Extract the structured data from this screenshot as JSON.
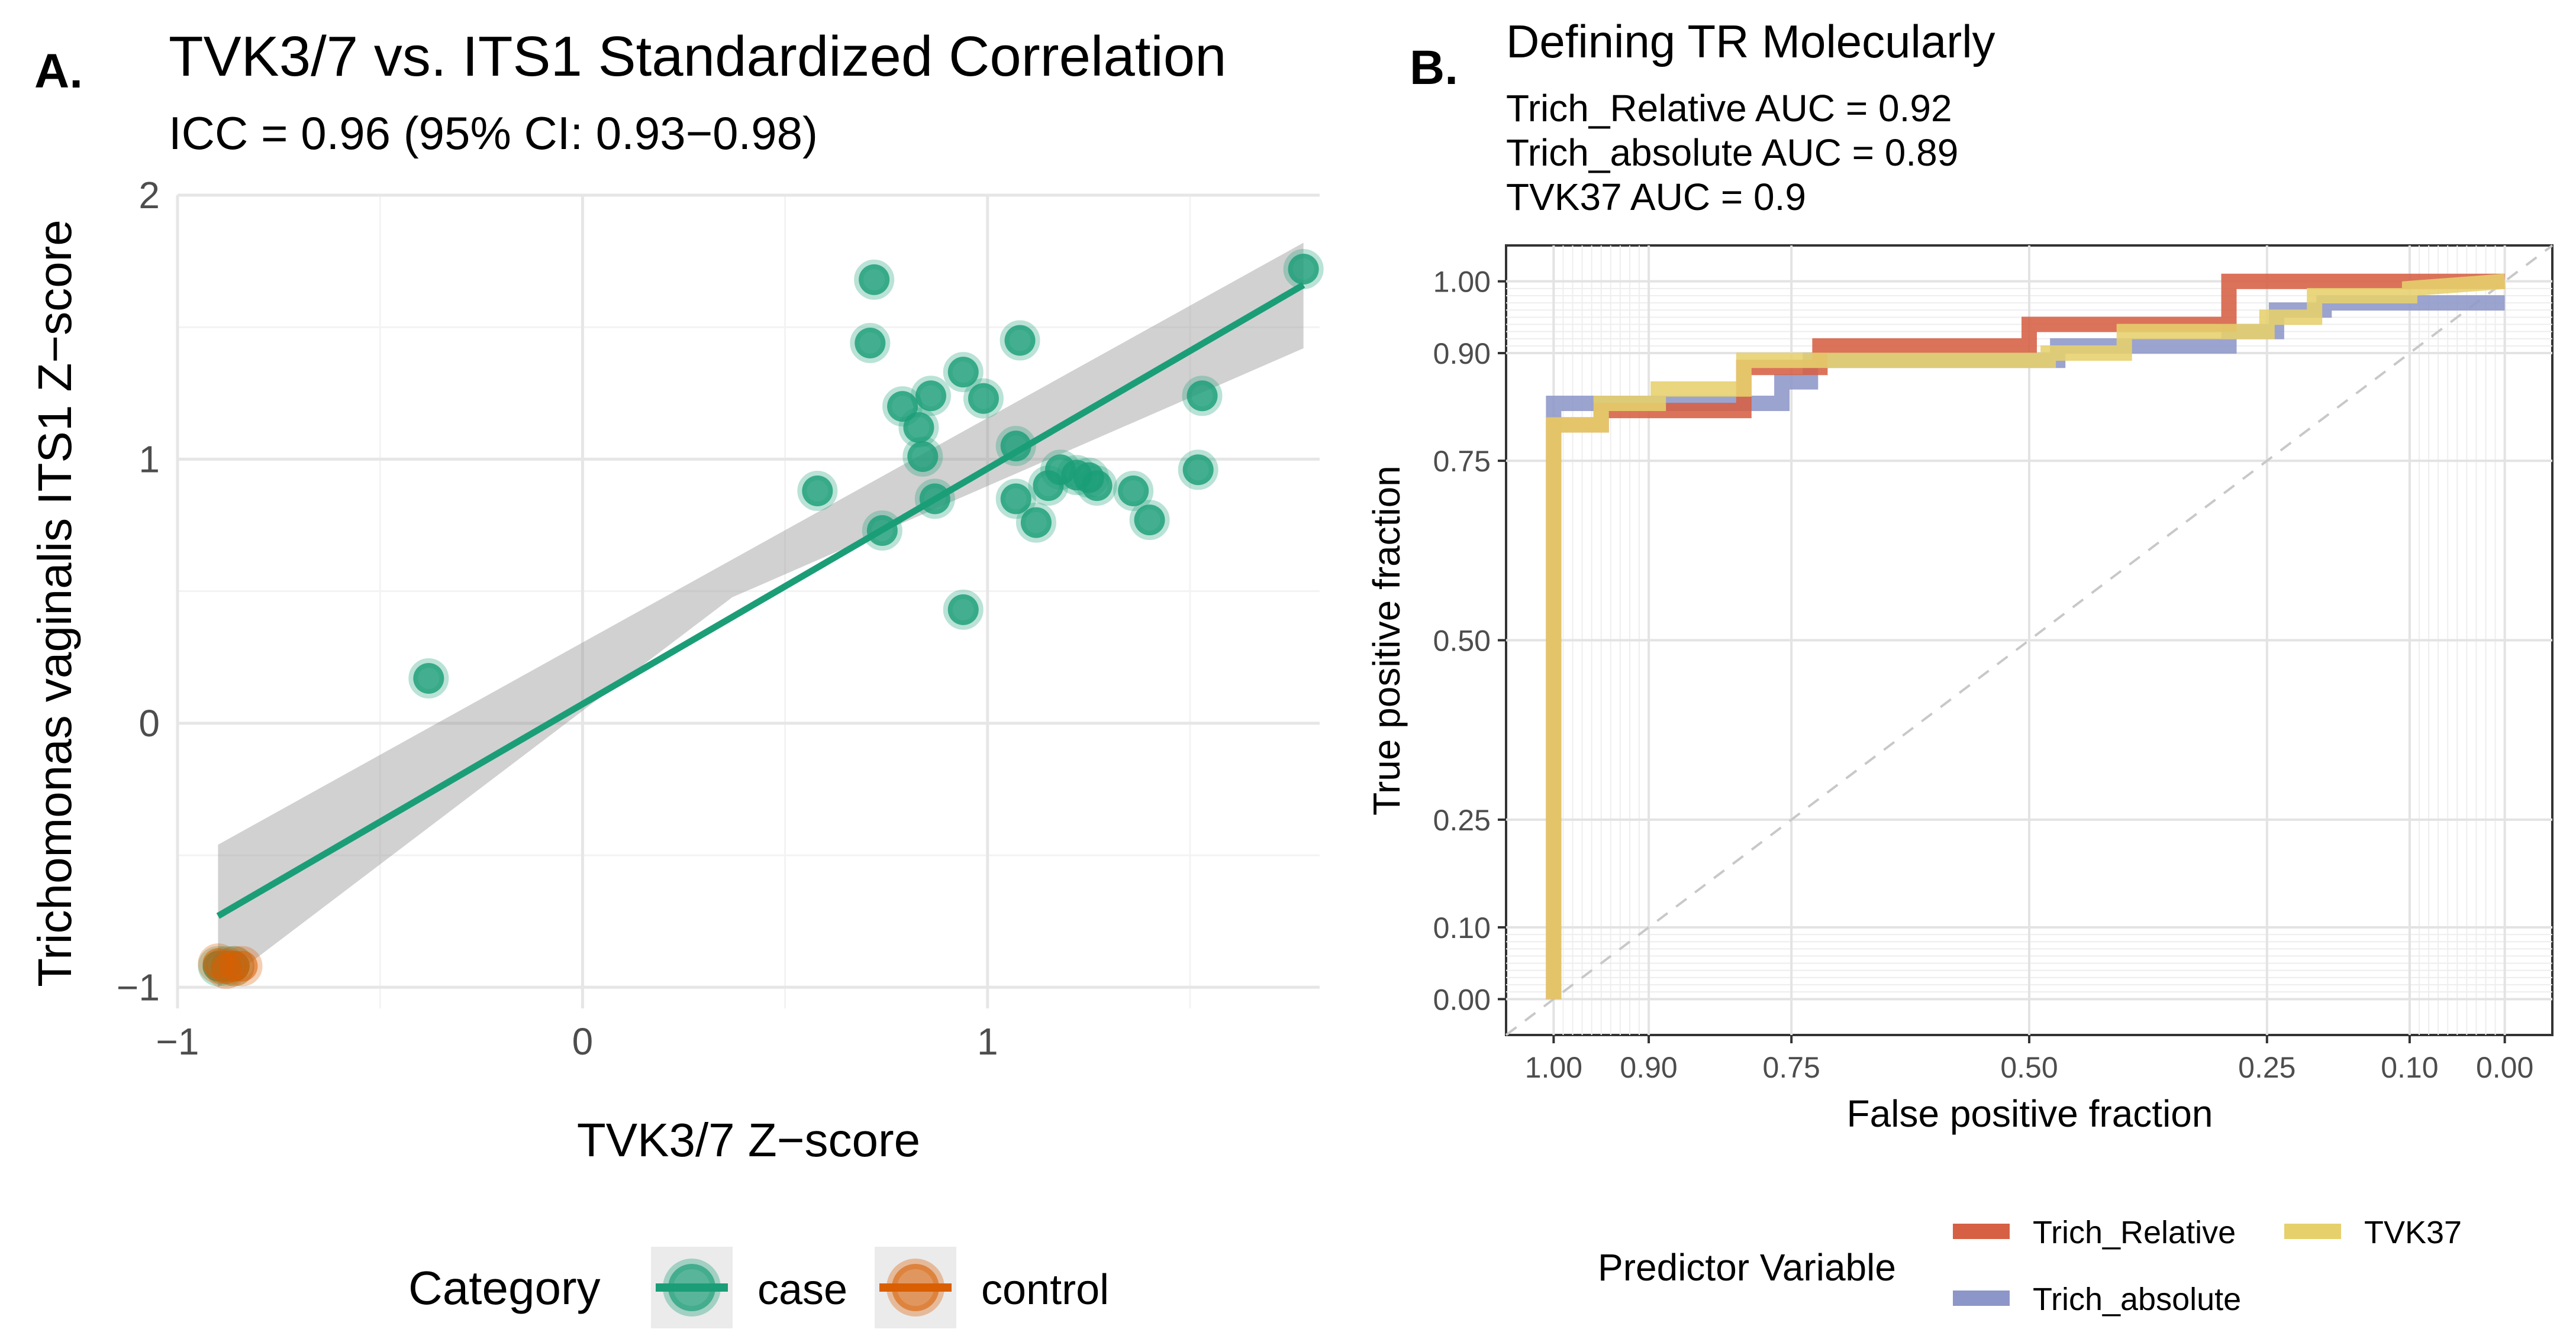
{
  "panel_a": {
    "label": "A.",
    "title": "TVK3/7 vs. ITS1 Standardized Correlation",
    "subtitle": "ICC = 0.96 (95% CI: 0.93−0.98)"
  },
  "panel_b": {
    "label": "B.",
    "title": "Defining TR Molecularly",
    "subtitle_lines": [
      "Trich_Relative AUC = 0.92",
      "Trich_absolute AUC = 0.89",
      "TVK37 AUC = 0.9"
    ]
  },
  "chart_data": [
    {
      "type": "scatter",
      "title": "TVK3/7 vs. ITS1 Standardized Correlation",
      "subtitle": "ICC = 0.96 (95% CI: 0.93−0.98)",
      "xlabel": "TVK3/7 Z−score",
      "ylabel": "Trichomonas vaginalis ITS1 Z−score",
      "xlim": [
        -1,
        1.82
      ],
      "ylim": [
        -1.08,
        2.0
      ],
      "xticks": [
        {
          "v": -1,
          "label": "−1"
        },
        {
          "v": 0,
          "label": "0"
        },
        {
          "v": 1,
          "label": "1"
        }
      ],
      "yticks": [
        {
          "v": -1,
          "label": "−1"
        },
        {
          "v": 0,
          "label": "0"
        },
        {
          "v": 1,
          "label": "1"
        },
        {
          "v": 2,
          "label": "2"
        }
      ],
      "grid": true,
      "legend": {
        "title": "Category",
        "position": "bottom"
      },
      "series": [
        {
          "name": "case",
          "color": "#1b9e77",
          "points": [
            [
              1.78,
              1.72
            ],
            [
              0.72,
              1.68
            ],
            [
              0.71,
              1.44
            ],
            [
              1.08,
              1.45
            ],
            [
              0.94,
              1.33
            ],
            [
              0.86,
              1.24
            ],
            [
              0.99,
              1.23
            ],
            [
              0.79,
              1.2
            ],
            [
              0.83,
              1.12
            ],
            [
              0.84,
              1.01
            ],
            [
              1.07,
              1.05
            ],
            [
              1.53,
              1.24
            ],
            [
              1.52,
              0.96
            ],
            [
              1.18,
              0.96
            ],
            [
              1.22,
              0.94
            ],
            [
              1.25,
              0.93
            ],
            [
              1.27,
              0.9
            ],
            [
              1.15,
              0.9
            ],
            [
              1.36,
              0.88
            ],
            [
              1.4,
              0.77
            ],
            [
              0.58,
              0.88
            ],
            [
              0.87,
              0.85
            ],
            [
              1.07,
              0.85
            ],
            [
              1.12,
              0.76
            ],
            [
              0.74,
              0.73
            ],
            [
              0.94,
              0.43
            ],
            [
              -0.38,
              0.17
            ],
            [
              -0.88,
              -0.92
            ],
            [
              -0.9,
              -0.92
            ],
            [
              -0.86,
              -0.92
            ]
          ]
        },
        {
          "name": "control",
          "color": "#d95f02",
          "points": [
            [
              -0.86,
              -0.92
            ],
            [
              -0.88,
              -0.93
            ],
            [
              -0.84,
              -0.92
            ],
            [
              -0.9,
              -0.91
            ]
          ]
        }
      ],
      "fit": {
        "series": "case",
        "color": "#1b9e77",
        "x": [
          -0.9,
          1.78
        ],
        "y": [
          -0.73,
          1.66
        ],
        "band_upper": [
          -0.46,
          1.82
        ],
        "band_lower": [
          -1.0,
          1.42
        ]
      }
    },
    {
      "type": "line",
      "title": "Defining TR Molecularly",
      "subtitle": [
        "Trich_Relative AUC = 0.92",
        "Trich_absolute AUC = 0.89",
        "TVK37 AUC = 0.9"
      ],
      "xlabel": "False positive fraction",
      "ylabel": "True positive fraction",
      "x_reversed": true,
      "xlim": [
        1.05,
        -0.05
      ],
      "ylim": [
        -0.05,
        1.05
      ],
      "xticks": [
        {
          "v": 1.0,
          "label": "1.00"
        },
        {
          "v": 0.9,
          "label": "0.90"
        },
        {
          "v": 0.75,
          "label": "0.75"
        },
        {
          "v": 0.5,
          "label": "0.50"
        },
        {
          "v": 0.25,
          "label": "0.25"
        },
        {
          "v": 0.1,
          "label": "0.10"
        },
        {
          "v": 0.0,
          "label": "0.00"
        }
      ],
      "yticks": [
        {
          "v": 1.0,
          "label": "1.00"
        },
        {
          "v": 0.9,
          "label": "0.90"
        },
        {
          "v": 0.75,
          "label": "0.75"
        },
        {
          "v": 0.5,
          "label": "0.50"
        },
        {
          "v": 0.25,
          "label": "0.25"
        },
        {
          "v": 0.1,
          "label": "0.10"
        },
        {
          "v": 0.0,
          "label": "0.00"
        }
      ],
      "grid": true,
      "diagonal": true,
      "legend": {
        "title": "Predictor Variable",
        "position": "bottom"
      },
      "series": [
        {
          "name": "Trich_absolute",
          "color": "#8d96c8",
          "points": [
            [
              1.0,
              0.0
            ],
            [
              1.0,
              0.83
            ],
            [
              0.9,
              0.83
            ],
            [
              0.9,
              0.83
            ],
            [
              0.76,
              0.83
            ],
            [
              0.76,
              0.86
            ],
            [
              0.73,
              0.86
            ],
            [
              0.73,
              0.89
            ],
            [
              0.47,
              0.89
            ],
            [
              0.47,
              0.91
            ],
            [
              0.29,
              0.91
            ],
            [
              0.29,
              0.93
            ],
            [
              0.24,
              0.93
            ],
            [
              0.24,
              0.96
            ],
            [
              0.19,
              0.96
            ],
            [
              0.19,
              0.97
            ],
            [
              0.0,
              0.97
            ]
          ]
        },
        {
          "name": "Trich_Relative",
          "color": "#d66044",
          "points": [
            [
              1.0,
              0.0
            ],
            [
              1.0,
              0.8
            ],
            [
              0.95,
              0.8
            ],
            [
              0.95,
              0.82
            ],
            [
              0.8,
              0.82
            ],
            [
              0.8,
              0.88
            ],
            [
              0.72,
              0.88
            ],
            [
              0.72,
              0.91
            ],
            [
              0.5,
              0.91
            ],
            [
              0.5,
              0.94
            ],
            [
              0.29,
              0.94
            ],
            [
              0.29,
              1.0
            ],
            [
              0.0,
              1.0
            ]
          ]
        },
        {
          "name": "TVK37",
          "color": "#e6d06c",
          "points": [
            [
              1.0,
              0.0
            ],
            [
              1.0,
              0.8
            ],
            [
              0.95,
              0.8
            ],
            [
              0.95,
              0.83
            ],
            [
              0.89,
              0.83
            ],
            [
              0.89,
              0.85
            ],
            [
              0.8,
              0.85
            ],
            [
              0.8,
              0.89
            ],
            [
              0.48,
              0.89
            ],
            [
              0.48,
              0.9
            ],
            [
              0.4,
              0.9
            ],
            [
              0.4,
              0.93
            ],
            [
              0.25,
              0.93
            ],
            [
              0.25,
              0.95
            ],
            [
              0.2,
              0.95
            ],
            [
              0.2,
              0.98
            ],
            [
              0.1,
              0.98
            ],
            [
              0.1,
              0.99
            ],
            [
              0.0,
              1.0
            ]
          ]
        }
      ]
    }
  ]
}
